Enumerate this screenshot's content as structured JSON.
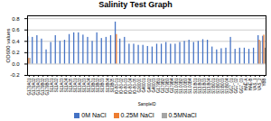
{
  "chart_data": {
    "type": "bar",
    "title": "Salinity Test Graph",
    "xlabel": "SampleID",
    "ylabel": "OD600 values",
    "categories": [
      "G179A01",
      "G179A02",
      "G179A03",
      "G179B02",
      "G179B03",
      "S11A01",
      "S11A02",
      "S11A03",
      "S11A04",
      "S11A05",
      "S13A01",
      "S13A02",
      "S13A03",
      "S13A04",
      "S13B01",
      "S13B02",
      "S13B03",
      "S13B04",
      "S13B05",
      "IO-80-01",
      "IO-80-02",
      "IO-80-03",
      "IO-80-04",
      "IO-80-05",
      "G36000",
      "G46001",
      "G46002",
      "G46003",
      "G179B1",
      "G179B2",
      "G179B3",
      "G179B4",
      "S1.00B1",
      "S1.00B2",
      "S1.00B3",
      "S1.00B4",
      "S13.B01",
      "S13.B02",
      "S13.B03",
      "S13.B04",
      "S3.B001",
      "S3.B002",
      "S3.B003",
      "S3.B004",
      "GG7_01",
      "GG7_02",
      "GG7_03",
      "HAE-A",
      "HAE-B",
      "VAS_1",
      "VAS_2",
      "YBB"
    ],
    "series": [
      {
        "name": "0M NaCl",
        "color": "#4472C4",
        "values": [
          0.48,
          0.47,
          0.5,
          0.44,
          0.25,
          0.38,
          0.5,
          0.4,
          0.42,
          0.52,
          0.55,
          0.55,
          0.51,
          0.47,
          0.4,
          0.55,
          0.45,
          0.47,
          0.5,
          0.74,
          0.44,
          0.47,
          0.35,
          0.35,
          0.33,
          0.33,
          0.31,
          0.3,
          0.35,
          0.35,
          0.38,
          0.35,
          0.35,
          0.38,
          0.4,
          0.42,
          0.38,
          0.4,
          0.43,
          0.42,
          0.3,
          0.25,
          0.27,
          0.28,
          0.47,
          0.26,
          0.28,
          0.28,
          0.26,
          0.28,
          0.5,
          0.49
        ]
      },
      {
        "name": "0.25M NaCl",
        "color": "#ED7D31",
        "values": [
          0.1,
          null,
          null,
          null,
          null,
          null,
          null,
          null,
          null,
          null,
          null,
          null,
          null,
          null,
          null,
          null,
          null,
          null,
          null,
          0.52,
          null,
          null,
          null,
          null,
          null,
          null,
          null,
          null,
          null,
          null,
          null,
          null,
          null,
          null,
          null,
          null,
          null,
          null,
          null,
          null,
          null,
          null,
          null,
          null,
          null,
          null,
          null,
          null,
          null,
          null,
          0.42,
          0.51
        ]
      },
      {
        "name": "0.5MNaCl",
        "color": "#A5A5A5",
        "values": [
          0.1,
          null,
          null,
          null,
          null,
          null,
          null,
          null,
          null,
          null,
          null,
          null,
          null,
          null,
          null,
          null,
          null,
          null,
          null,
          null,
          null,
          null,
          null,
          null,
          null,
          null,
          null,
          null,
          null,
          null,
          null,
          null,
          null,
          null,
          null,
          null,
          null,
          null,
          null,
          null,
          null,
          null,
          null,
          null,
          null,
          null,
          null,
          null,
          null,
          null,
          0.4,
          0.28
        ]
      }
    ],
    "ylim": [
      -0.2,
      0.85
    ],
    "yticks": [
      -0.2,
      {
        "value": 0,
        "label": "0.0"
      },
      0.2,
      0.4,
      0.6,
      0.8
    ],
    "grid": true,
    "legend": "bottom"
  }
}
